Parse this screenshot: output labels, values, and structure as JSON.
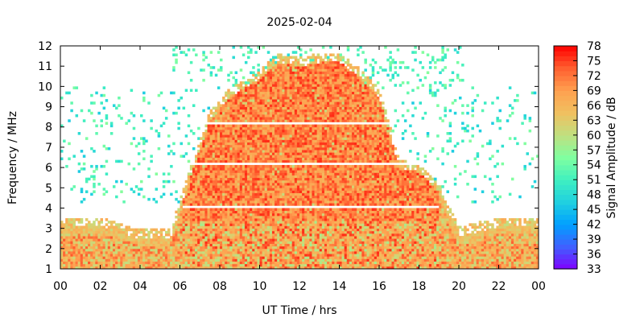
{
  "chart_data": {
    "type": "heatmap",
    "title": "2025-02-04",
    "xlabel": "UT Time / hrs",
    "ylabel": "Frequency / MHz",
    "colorbar_label": "Signal Amplitude / dB",
    "x_ticks": [
      "00",
      "02",
      "04",
      "06",
      "08",
      "10",
      "12",
      "14",
      "16",
      "18",
      "20",
      "22",
      "00"
    ],
    "x_tick_hours": [
      0,
      2,
      4,
      6,
      8,
      10,
      12,
      14,
      16,
      18,
      20,
      22,
      24
    ],
    "xlim": [
      0,
      24
    ],
    "y_ticks": [
      1,
      2,
      3,
      4,
      5,
      6,
      7,
      8,
      9,
      10,
      11,
      12
    ],
    "ylim": [
      1,
      12
    ],
    "colorbar_ticks": [
      78,
      75,
      72,
      69,
      66,
      63,
      60,
      57,
      54,
      51,
      48,
      45,
      42,
      39,
      36,
      33
    ],
    "colorbar_range": [
      33,
      78
    ],
    "colorscale": [
      "#8000ff",
      "#4060ff",
      "#00a0ff",
      "#20d0e0",
      "#40f0c0",
      "#80ffa0",
      "#c0e080",
      "#f0c060",
      "#ffa050",
      "#ff6030",
      "#ff0000"
    ],
    "intense_region_envelope": {
      "hours": [
        0,
        2,
        4,
        5.5,
        6.5,
        7.5,
        8.5,
        10,
        11,
        12,
        13,
        14,
        15,
        16,
        17,
        18,
        19,
        20,
        22,
        24
      ],
      "top_mhz": [
        3.1,
        3.1,
        2.5,
        2.5,
        5.5,
        8.3,
        9.5,
        10.4,
        11.2,
        11.0,
        11.2,
        11.2,
        10.5,
        9.5,
        6.0,
        5.8,
        4.8,
        2.6,
        3.1,
        3.1
      ]
    },
    "grid": false
  }
}
